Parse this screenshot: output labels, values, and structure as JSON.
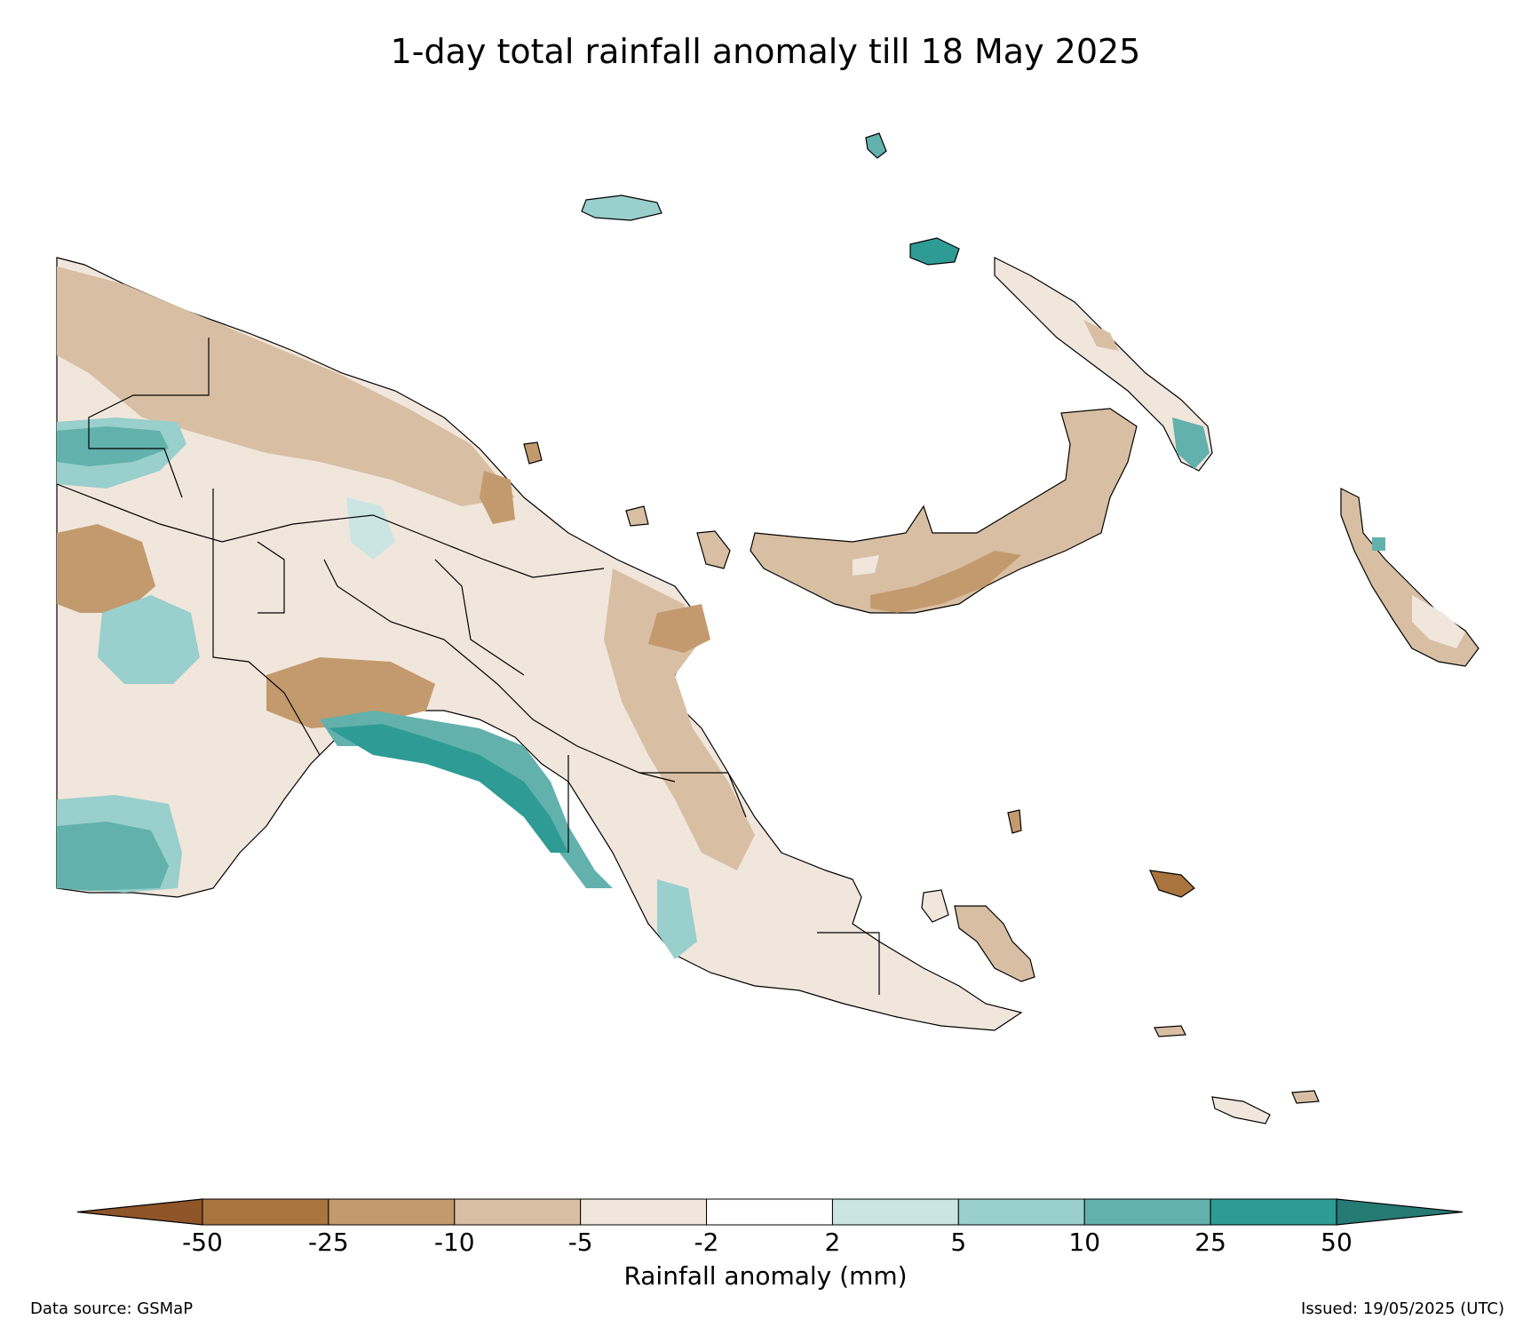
{
  "title": "1-day total rainfall anomaly till 18 May 2025",
  "colorbar": {
    "label": "Rainfall anomaly (mm)",
    "ticks": [
      "-50",
      "-25",
      "-10",
      "-5",
      "-2",
      "2",
      "5",
      "10",
      "25",
      "50"
    ],
    "colors": {
      "extend_low": "#8e5528",
      "lt_-25": "#a9743e",
      "-25_-10": "#c39a6e",
      "-10_-5": "#d8bfa3",
      "-5_-2": "#f1e6dc",
      "-2_2": "#ffffff",
      "2_5": "#cbe5e4",
      "5_10": "#99cfcc",
      "10_25": "#62b1ad",
      "25_50": "#2f9b95",
      "extend_high": "#257a74"
    }
  },
  "footer": {
    "data_source": "Data source: GSMaP",
    "issued": "Issued: 19/05/2025 (UTC)"
  }
}
